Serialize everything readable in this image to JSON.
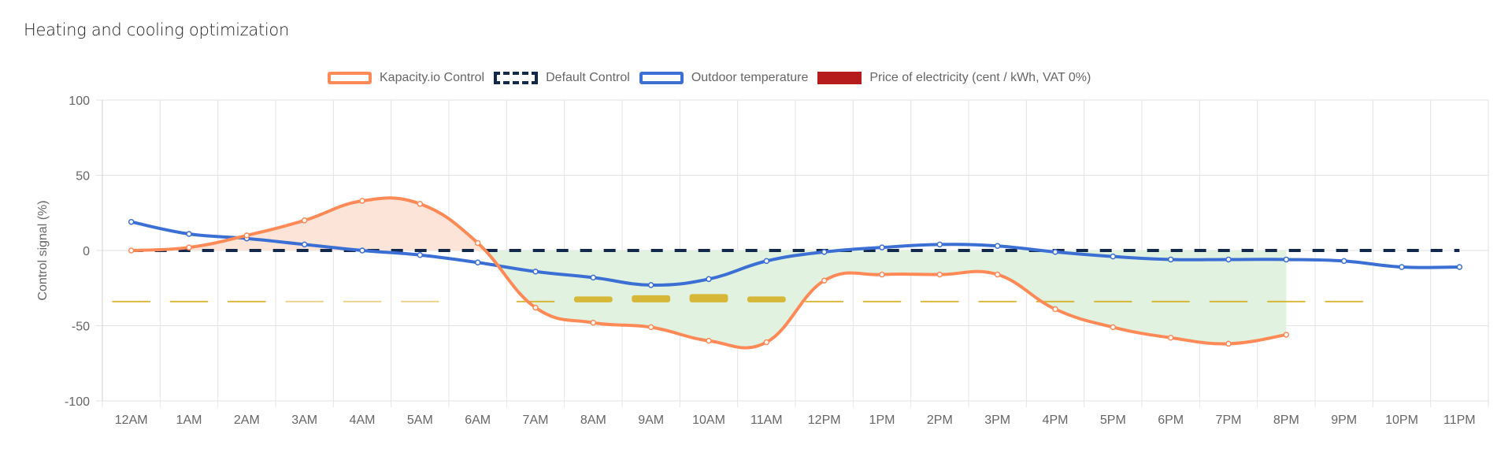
{
  "title": "Heating and cooling optimization",
  "chart_data": {
    "type": "line",
    "title": "Heating and cooling optimization",
    "xlabel": "",
    "ylabel": "Control signal (%)",
    "ylim": [
      -100,
      100
    ],
    "yticks": [
      "100",
      "50",
      "0",
      "-50",
      "-100"
    ],
    "ytick_values": [
      100,
      50,
      0,
      -50,
      -100
    ],
    "grid": true,
    "legend_position": "top",
    "categories": [
      "12AM",
      "1AM",
      "2AM",
      "3AM",
      "4AM",
      "5AM",
      "6AM",
      "7AM",
      "8AM",
      "9AM",
      "10AM",
      "11AM",
      "12PM",
      "1PM",
      "2PM",
      "3PM",
      "4PM",
      "5PM",
      "6PM",
      "7PM",
      "8PM",
      "9PM",
      "10PM",
      "11PM"
    ],
    "series": [
      {
        "name": "Kapacity.io Control",
        "color": "#ff8a57",
        "style": "solid",
        "values": [
          0,
          2,
          10,
          20,
          33,
          31,
          5,
          -38,
          -48,
          -51,
          -60,
          -61,
          -20,
          -16,
          -16,
          -16,
          -39,
          -51,
          -58,
          -62,
          -56,
          null,
          null,
          null
        ]
      },
      {
        "name": "Default Control",
        "color": "#13294b",
        "style": "dashed",
        "values": [
          0,
          0,
          0,
          0,
          0,
          0,
          0,
          0,
          0,
          0,
          0,
          0,
          0,
          0,
          0,
          0,
          0,
          0,
          0,
          0,
          0,
          0,
          0,
          0
        ]
      },
      {
        "name": "Outdoor temperature",
        "color": "#3b6fd4",
        "style": "solid",
        "values": [
          19,
          11,
          8,
          4,
          0,
          -3,
          -8,
          -14,
          -18,
          -23,
          -19,
          -7,
          -1,
          2,
          4,
          3,
          -1,
          -4,
          -6,
          -6,
          -6,
          -7,
          -11,
          -11
        ]
      },
      {
        "name": "Price of electricity (cent / kWh, VAT 0%)",
        "color": "#b71c1c",
        "style": "bar",
        "values": [
          0.4,
          0.4,
          0.4,
          0.3,
          0.3,
          0.3,
          null,
          0.5,
          2.5,
          3.0,
          3.5,
          2.5,
          0.5,
          0.5,
          0.5,
          0.5,
          0.5,
          0.5,
          0.5,
          0.5,
          0.5,
          0.5,
          null,
          null
        ]
      }
    ],
    "fill_positive_color": "#fde4d8",
    "fill_negative_color": "#e2f2e1",
    "price_bar_color": "#d4ad1a"
  }
}
